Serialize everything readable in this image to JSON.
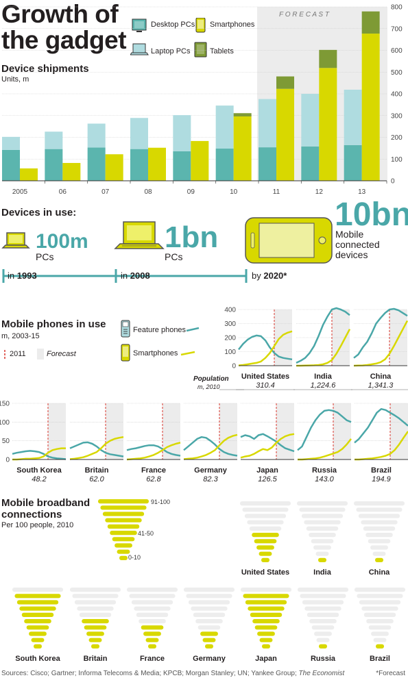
{
  "title": "Growth of the gadget",
  "colors": {
    "desktop": "#5bb5ae",
    "laptop": "#afdce0",
    "smartphone": "#d8d800",
    "tablet": "#7e9a35",
    "feature": "#4aa7a8",
    "forecast": "#ececec",
    "grey_tri": "#ededed",
    "red": "#d9342b"
  },
  "legend": {
    "desktop": "Desktop PCs",
    "smartphones": "Smartphones",
    "laptop": "Laptop PCs",
    "tablets": "Tablets"
  },
  "forecast_label": "F O R E C A S T",
  "devices_in_use": {
    "title": "Devices in use:",
    "pcs_1993": "100m",
    "pcs_1993_unit": "PCs",
    "pcs_2008": "1bn",
    "pcs_2008_unit": "PCs",
    "mobile_2020": "10bn",
    "mobile_2020_unit": "Mobile connected devices",
    "in_label": "in",
    "year_1993": "1993",
    "year_2008": "2008",
    "by_label": "by",
    "year_2020": "2020*"
  },
  "mobile_phones": {
    "title": "Mobile phones in use",
    "sub": "m, 2003-15",
    "marker_2011": "2011",
    "forecast": "Forecast",
    "feature_label": "Feature phones",
    "smart_label": "Smartphones",
    "population_label": "Population",
    "population_sub": "m, 2010"
  },
  "broadband": {
    "title_line1": "Mobile broadband",
    "title_line2": "connections",
    "sub": "Per 100 people, 2010",
    "key_labels": [
      "91-100",
      "41-50",
      "0-10"
    ]
  },
  "footer": {
    "sources": "Sources: Cisco; Gartner; Informa Telecoms & Media; KPCB; Morgan Stanley; UN; Yankee Group;",
    "economist": "The Economist",
    "note": "*Forecast"
  },
  "chart_data": [
    {
      "type": "bar",
      "title": "Device shipments",
      "ylabel": "Units, m",
      "categories": [
        "2005",
        "06",
        "07",
        "08",
        "09",
        "10",
        "11",
        "12",
        "13"
      ],
      "ylim": [
        0,
        800
      ],
      "yticks": [
        "0",
        "100",
        "200",
        "300",
        "400",
        "500",
        "600",
        "700",
        "800"
      ],
      "forecast_from": "11",
      "series": [
        {
          "name": "Desktop PCs",
          "values": [
            142,
            146,
            153,
            146,
            136,
            148,
            154,
            158,
            164
          ],
          "stack": "pc"
        },
        {
          "name": "Laptop PCs",
          "values": [
            60,
            80,
            110,
            143,
            166,
            198,
            222,
            242,
            255
          ],
          "stack": "pc"
        },
        {
          "name": "Smartphones",
          "values": [
            57,
            82,
            122,
            152,
            183,
            296,
            423,
            519,
            677
          ],
          "stack": "phone"
        },
        {
          "name": "Tablets",
          "values": [
            0,
            0,
            0,
            0,
            0,
            15,
            57,
            83,
            102
          ],
          "stack": "phone"
        }
      ]
    },
    {
      "type": "line",
      "title": "Mobile phones in use",
      "x": [
        2003,
        2004,
        2005,
        2006,
        2007,
        2008,
        2009,
        2010,
        2011,
        2012,
        2013,
        2014,
        2015
      ],
      "marker_x": 2011,
      "forecast_from": 2011,
      "panels": [
        {
          "country": "United States",
          "population": "310.4",
          "ylim": [
            0,
            400
          ],
          "yticks": [
            "0",
            "100",
            "200",
            "300",
            "400"
          ],
          "series": [
            {
              "name": "Feature phones",
              "values": [
                115,
                155,
                185,
                205,
                215,
                210,
                180,
                130,
                90,
                65,
                55,
                50,
                45
              ]
            },
            {
              "name": "Smartphones",
              "values": [
                2,
                5,
                10,
                15,
                20,
                30,
                55,
                90,
                140,
                190,
                220,
                235,
                245
              ]
            }
          ]
        },
        {
          "country": "India",
          "population": "1,224.6",
          "ylim": [
            0,
            400
          ],
          "series": [
            {
              "name": "Feature phones",
              "values": [
                20,
                35,
                55,
                90,
                140,
                210,
                290,
                350,
                400,
                410,
                400,
                385,
                360
              ]
            },
            {
              "name": "Smartphones",
              "values": [
                0,
                0,
                1,
                2,
                3,
                5,
                10,
                20,
                40,
                85,
                140,
                200,
                260
              ]
            }
          ]
        },
        {
          "country": "China",
          "population": "1,341.3",
          "ylim": [
            0,
            400
          ],
          "series": [
            {
              "name": "Feature phones",
              "values": [
                55,
                80,
                130,
                170,
                230,
                300,
                340,
                375,
                400,
                405,
                395,
                375,
                355
              ]
            },
            {
              "name": "Smartphones",
              "values": [
                0,
                1,
                2,
                5,
                10,
                15,
                25,
                45,
                85,
                140,
                200,
                260,
                320
              ]
            }
          ]
        },
        {
          "country": "South Korea",
          "population": "48.2",
          "ylim": [
            0,
            150
          ],
          "yticks": [
            "0",
            "50",
            "100",
            "150"
          ],
          "series": [
            {
              "name": "Feature phones",
              "values": [
                15,
                18,
                20,
                22,
                23,
                22,
                20,
                15,
                8,
                5,
                3,
                2,
                1
              ]
            },
            {
              "name": "Smartphones",
              "values": [
                0,
                0,
                1,
                2,
                2,
                3,
                4,
                8,
                18,
                25,
                28,
                30,
                30
              ]
            }
          ]
        },
        {
          "country": "Britain",
          "population": "62.0",
          "ylim": [
            0,
            150
          ],
          "series": [
            {
              "name": "Feature phones",
              "values": [
                30,
                35,
                40,
                45,
                46,
                42,
                35,
                25,
                18,
                14,
                12,
                10,
                8
              ]
            },
            {
              "name": "Smartphones",
              "values": [
                1,
                2,
                4,
                6,
                10,
                15,
                20,
                30,
                42,
                50,
                55,
                58,
                60
              ]
            }
          ]
        },
        {
          "country": "France",
          "population": "62.8",
          "ylim": [
            0,
            150
          ],
          "series": [
            {
              "name": "Feature phones",
              "values": [
                25,
                28,
                30,
                33,
                36,
                38,
                38,
                35,
                28,
                20,
                15,
                12,
                10
              ]
            },
            {
              "name": "Smartphones",
              "values": [
                0,
                1,
                2,
                3,
                5,
                8,
                12,
                18,
                25,
                33,
                38,
                42,
                45
              ]
            }
          ]
        },
        {
          "country": "Germany",
          "population": "82.3",
          "ylim": [
            0,
            150
          ],
          "series": [
            {
              "name": "Feature phones",
              "values": [
                25,
                35,
                45,
                55,
                60,
                58,
                50,
                40,
                28,
                20,
                15,
                12,
                10
              ]
            },
            {
              "name": "Smartphones",
              "values": [
                1,
                2,
                3,
                5,
                8,
                12,
                18,
                25,
                38,
                50,
                58,
                63,
                66
              ]
            }
          ]
        },
        {
          "country": "Japan",
          "population": "126.5",
          "ylim": [
            0,
            150
          ],
          "series": [
            {
              "name": "Feature phones",
              "values": [
                60,
                65,
                62,
                55,
                65,
                68,
                62,
                55,
                48,
                38,
                30,
                26,
                22
              ]
            },
            {
              "name": "Smartphones",
              "values": [
                5,
                8,
                10,
                15,
                22,
                28,
                25,
                32,
                45,
                55,
                62,
                66,
                68
              ]
            }
          ]
        },
        {
          "country": "Russia",
          "population": "143.0",
          "ylim": [
            0,
            150
          ],
          "series": [
            {
              "name": "Feature phones",
              "values": [
                25,
                35,
                60,
                85,
                105,
                120,
                130,
                132,
                130,
                125,
                115,
                105,
                100
              ]
            },
            {
              "name": "Smartphones",
              "values": [
                0,
                0,
                1,
                2,
                3,
                5,
                8,
                12,
                16,
                20,
                28,
                40,
                55
              ]
            }
          ]
        },
        {
          "country": "Brazil",
          "population": "194.9",
          "ylim": [
            0,
            150
          ],
          "series": [
            {
              "name": "Feature phones",
              "values": [
                45,
                55,
                70,
                85,
                105,
                125,
                135,
                132,
                125,
                118,
                110,
                100,
                90
              ]
            },
            {
              "name": "Smartphones",
              "values": [
                0,
                0,
                1,
                2,
                3,
                5,
                7,
                10,
                15,
                25,
                40,
                58,
                75
              ]
            }
          ]
        }
      ]
    },
    {
      "type": "bar",
      "title": "Mobile broadband connections",
      "ylabel": "Per 100 people, 2010",
      "scale": "10 bands, 0-10 to 91-100",
      "categories": [
        "United States",
        "India",
        "China",
        "South Korea",
        "Britain",
        "France",
        "Germany",
        "Japan",
        "Russia",
        "Brazil"
      ],
      "values": [
        50,
        1,
        1,
        90,
        50,
        40,
        30,
        90,
        1,
        1
      ]
    }
  ]
}
